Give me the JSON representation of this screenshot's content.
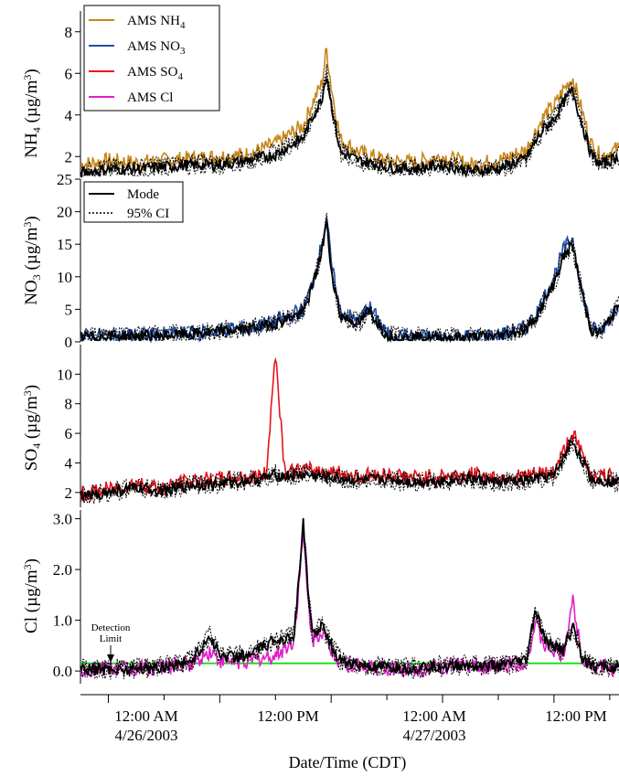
{
  "figure": {
    "xlabel": "Date/Time (CDT)",
    "x_ticks": [
      {
        "line1": "12:00 AM",
        "line2": "4/26/2003"
      },
      {
        "line1": "12:00 PM",
        "line2": ""
      },
      {
        "line1": "12:00 AM",
        "line2": "4/27/2003"
      },
      {
        "line1": "12:00 PM",
        "line2": ""
      }
    ],
    "annotation": {
      "line1": "Detection",
      "line2": "Limit"
    },
    "legend_top": [
      "AMS NH",
      "AMS NO",
      "AMS SO",
      "AMS Cl"
    ],
    "legend_top_subs": [
      "4",
      "3",
      "4",
      ""
    ],
    "legend_mode": [
      "Mode",
      "95% CI"
    ],
    "colors": {
      "nh4": "#c8861a",
      "no3": "#1f4fa8",
      "so4": "#e8141c",
      "cl": "#e020c8",
      "mode": "#000000",
      "detection": "#22dd22"
    }
  },
  "chart_data": [
    {
      "type": "line",
      "id": "nh4",
      "ylabel": "NH4 (µg/m3)",
      "ylim": [
        1,
        9
      ],
      "yticks": [
        2,
        4,
        6,
        8
      ],
      "x_range_hours": [
        -15,
        43
      ],
      "series": [
        {
          "name": "AMS NH4",
          "color": "#c8861a",
          "x": [
            -15,
            -12,
            -9,
            -6,
            -3,
            0,
            3,
            6,
            9,
            10,
            11,
            11.5,
            12,
            13,
            15,
            18,
            21,
            24,
            27,
            30,
            33,
            34,
            35,
            36,
            37,
            38,
            39,
            40,
            41,
            43
          ],
          "y": [
            1.6,
            1.8,
            1.7,
            1.8,
            1.9,
            2.0,
            2.1,
            2.6,
            3.5,
            4.6,
            5.5,
            7.2,
            5.4,
            2.8,
            2.2,
            1.8,
            1.7,
            2.0,
            1.6,
            1.8,
            2.3,
            3.2,
            4.0,
            4.4,
            5.2,
            5.8,
            4.2,
            2.6,
            2.0,
            2.4
          ]
        },
        {
          "name": "Mode",
          "x": [
            -15,
            -12,
            -9,
            -6,
            -3,
            0,
            3,
            6,
            9,
            10,
            11,
            11.5,
            12,
            13,
            15,
            18,
            21,
            24,
            27,
            30,
            33,
            34,
            35,
            36,
            37,
            38,
            39,
            40,
            41,
            43
          ],
          "y": [
            1.2,
            1.4,
            1.4,
            1.5,
            1.6,
            1.6,
            1.8,
            2.1,
            2.9,
            3.9,
            4.8,
            6.0,
            4.6,
            2.2,
            1.8,
            1.5,
            1.4,
            1.6,
            1.3,
            1.4,
            1.9,
            2.7,
            3.4,
            3.8,
            4.6,
            5.2,
            3.6,
            2.1,
            1.6,
            2.0
          ]
        }
      ]
    },
    {
      "type": "line",
      "id": "no3",
      "ylabel": "NO3 (µg/m3)",
      "ylim": [
        0,
        25
      ],
      "yticks": [
        0,
        5,
        10,
        15,
        20,
        25
      ],
      "x_range_hours": [
        -15,
        43
      ],
      "series": [
        {
          "name": "AMS NO3",
          "color": "#1f4fa8",
          "x": [
            -15,
            -12,
            -9,
            -6,
            -3,
            -1,
            0,
            3,
            6,
            9,
            10,
            11,
            11.5,
            12,
            13,
            15,
            16,
            17,
            18,
            20,
            24,
            27,
            30,
            33,
            34,
            36,
            37,
            38,
            39,
            40,
            41,
            43
          ],
          "y": [
            0.8,
            1.0,
            1.0,
            1.1,
            1.3,
            1.5,
            1.8,
            2.2,
            3.0,
            5.0,
            9.0,
            15.0,
            19.5,
            12.0,
            4.5,
            3.2,
            5.5,
            3.5,
            1.0,
            0.8,
            0.6,
            0.8,
            1.0,
            2.2,
            4.0,
            10.0,
            14.0,
            16.0,
            8.0,
            2.0,
            1.5,
            6.0
          ]
        },
        {
          "name": "Mode",
          "x": [
            -15,
            -12,
            -9,
            -6,
            -3,
            -1,
            0,
            3,
            6,
            9,
            10,
            11,
            11.5,
            12,
            13,
            15,
            16,
            17,
            18,
            20,
            24,
            27,
            30,
            33,
            34,
            36,
            37,
            38,
            39,
            40,
            41,
            43
          ],
          "y": [
            0.7,
            0.9,
            0.9,
            1.0,
            1.2,
            1.4,
            1.6,
            2.0,
            2.8,
            4.5,
            8.5,
            14.0,
            18.5,
            11.0,
            4.0,
            2.8,
            4.8,
            3.0,
            0.9,
            0.7,
            0.6,
            0.7,
            0.9,
            2.0,
            3.6,
            9.0,
            13.0,
            15.0,
            7.5,
            1.8,
            1.3,
            5.5
          ]
        }
      ]
    },
    {
      "type": "line",
      "id": "so4",
      "ylabel": "SO4 (µg/m3)",
      "ylim": [
        1,
        12
      ],
      "yticks": [
        2,
        4,
        6,
        8,
        10
      ],
      "x_range_hours": [
        -15,
        43
      ],
      "series": [
        {
          "name": "AMS SO4",
          "color": "#e8141c",
          "x": [
            -15,
            -12,
            -9,
            -6,
            -3,
            0,
            3,
            5,
            6,
            7,
            9,
            12,
            15,
            18,
            21,
            24,
            27,
            30,
            33,
            36,
            38,
            40,
            43
          ],
          "y": [
            1.9,
            2.2,
            2.6,
            2.3,
            2.8,
            2.9,
            3.0,
            3.2,
            11.5,
            3.4,
            3.5,
            3.4,
            3.1,
            3.2,
            3.0,
            3.1,
            3.2,
            3.0,
            3.1,
            3.4,
            6.0,
            3.2,
            3.0
          ]
        },
        {
          "name": "Mode",
          "x": [
            -15,
            -12,
            -9,
            -6,
            -3,
            0,
            3,
            5,
            6,
            7,
            9,
            12,
            15,
            18,
            21,
            24,
            27,
            30,
            33,
            36,
            38,
            40,
            43
          ],
          "y": [
            1.7,
            2.0,
            2.3,
            2.1,
            2.5,
            2.6,
            2.8,
            3.0,
            3.2,
            3.1,
            3.2,
            3.0,
            2.8,
            2.9,
            2.7,
            2.8,
            2.9,
            2.7,
            2.8,
            3.1,
            5.5,
            2.9,
            2.7
          ]
        }
      ]
    },
    {
      "type": "line",
      "id": "cl",
      "ylabel": "Cl (µg/m3)",
      "ylim": [
        -0.25,
        3.1
      ],
      "yticks": [
        0.0,
        1.0,
        2.0,
        3.0
      ],
      "ytick_labels": [
        "0.0",
        "1.0",
        "2.0",
        "3.0"
      ],
      "x_range_hours": [
        -15,
        43
      ],
      "detection_limit": 0.15,
      "series": [
        {
          "name": "AMS Cl",
          "color": "#e020c8",
          "x": [
            -15,
            -12,
            -9,
            -6,
            -3,
            -1,
            0,
            3,
            6,
            8,
            9,
            9.5,
            10,
            11,
            12,
            13,
            15,
            18,
            21,
            24,
            27,
            30,
            33,
            34,
            35,
            37,
            38,
            39,
            40,
            43
          ],
          "y": [
            0.05,
            0.05,
            0.05,
            0.08,
            0.15,
            0.4,
            0.2,
            0.2,
            0.3,
            0.6,
            2.7,
            1.4,
            0.6,
            0.8,
            0.4,
            0.2,
            0.1,
            0.05,
            0.05,
            0.1,
            0.1,
            0.1,
            0.2,
            0.9,
            0.5,
            0.3,
            1.4,
            0.3,
            0.1,
            0.05
          ]
        },
        {
          "name": "Mode",
          "x": [
            -15,
            -12,
            -9,
            -6,
            -3,
            -1,
            0,
            3,
            6,
            8,
            9,
            9.5,
            10,
            11,
            12,
            13,
            15,
            18,
            21,
            24,
            27,
            30,
            33,
            34,
            35,
            37,
            38,
            39,
            40,
            43
          ],
          "y": [
            0.02,
            0.03,
            0.05,
            0.08,
            0.2,
            0.7,
            0.3,
            0.3,
            0.6,
            0.7,
            2.9,
            1.6,
            0.7,
            0.9,
            0.5,
            0.2,
            0.1,
            0.05,
            0.05,
            0.1,
            0.1,
            0.1,
            0.2,
            1.2,
            0.6,
            0.4,
            0.9,
            0.3,
            0.1,
            0.05
          ]
        }
      ]
    }
  ]
}
